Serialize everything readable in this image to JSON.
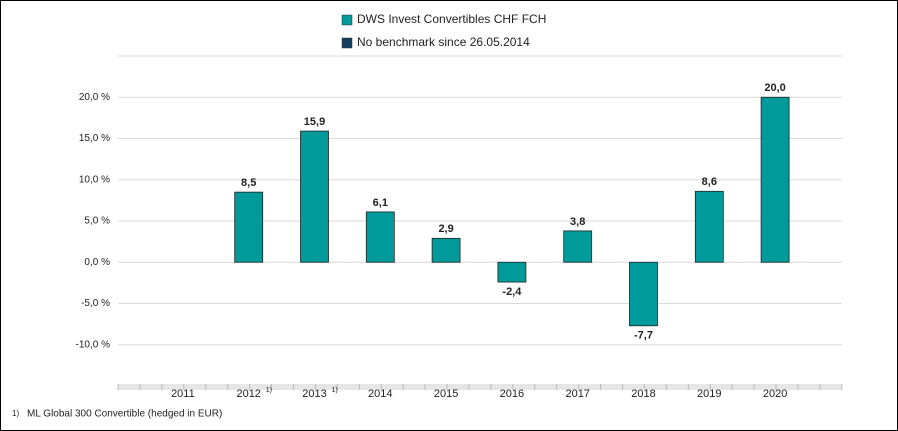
{
  "chart_data": {
    "type": "bar",
    "categories": [
      "2011",
      "2012",
      "2013",
      "2014",
      "2015",
      "2016",
      "2017",
      "2018",
      "2019",
      "2020"
    ],
    "category_notes": [
      null,
      "1)",
      "1)",
      null,
      null,
      null,
      null,
      null,
      null,
      null
    ],
    "series": [
      {
        "name": "DWS Invest Convertibles  CHF FCH",
        "color": "#009a9a",
        "values": [
          null,
          8.5,
          15.9,
          6.1,
          2.9,
          -2.4,
          3.8,
          -7.7,
          8.6,
          20.0
        ],
        "value_labels": [
          null,
          "8,5",
          "15,9",
          "6,1",
          "2,9",
          "-2,4",
          "3,8",
          "-7,7",
          "8,6",
          "20,0"
        ]
      },
      {
        "name": "No benchmark since 26.05.2014",
        "color": "#123e5e",
        "values": [
          null,
          null,
          null,
          null,
          null,
          null,
          null,
          null,
          null,
          null
        ]
      }
    ],
    "ylim": [
      -15,
      25
    ],
    "yticks": [
      {
        "value": -10,
        "label": "-10,0 %"
      },
      {
        "value": -5,
        "label": "-5,0 %"
      },
      {
        "value": 0,
        "label": "0,0 %"
      },
      {
        "value": 5,
        "label": "5,0 %"
      },
      {
        "value": 10,
        "label": "10,0 %"
      },
      {
        "value": 15,
        "label": "15,0 %"
      },
      {
        "value": 20,
        "label": "20,0 %"
      }
    ],
    "grid": true,
    "footnote": {
      "marker": "1)",
      "text": "ML Global 300 Convertible (hedged in EUR)"
    }
  }
}
